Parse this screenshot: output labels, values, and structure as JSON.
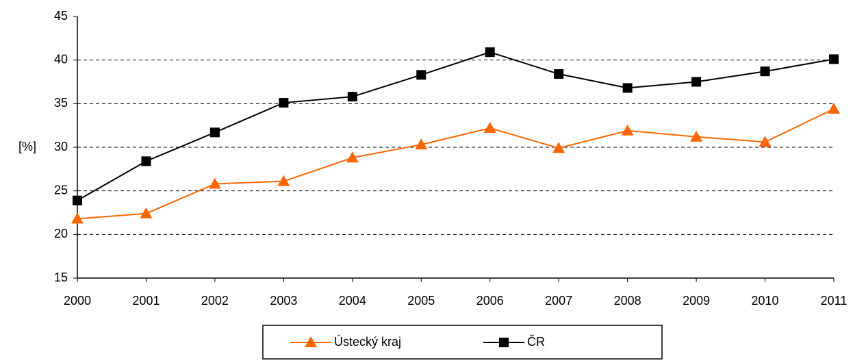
{
  "chart_data": {
    "type": "line",
    "y_label": "[%]",
    "categories": [
      "2000",
      "2001",
      "2002",
      "2003",
      "2004",
      "2005",
      "2006",
      "2007",
      "2008",
      "2009",
      "2010",
      "2011"
    ],
    "series": [
      {
        "name": "Ústecký kraj",
        "color": "#ff6600",
        "marker": "triangle",
        "values": [
          21.8,
          22.4,
          25.8,
          26.1,
          28.8,
          30.3,
          32.2,
          29.9,
          31.9,
          31.2,
          30.6,
          34.4
        ]
      },
      {
        "name": "ČR",
        "color": "#000000",
        "marker": "square",
        "values": [
          23.9,
          28.4,
          31.7,
          35.1,
          35.8,
          38.3,
          40.9,
          38.4,
          36.8,
          37.5,
          38.7,
          40.1
        ]
      }
    ],
    "ylim": [
      15,
      45
    ],
    "yticks": [
      15,
      20,
      25,
      30,
      35,
      40,
      45
    ],
    "grid": true,
    "legend": "bottom"
  }
}
